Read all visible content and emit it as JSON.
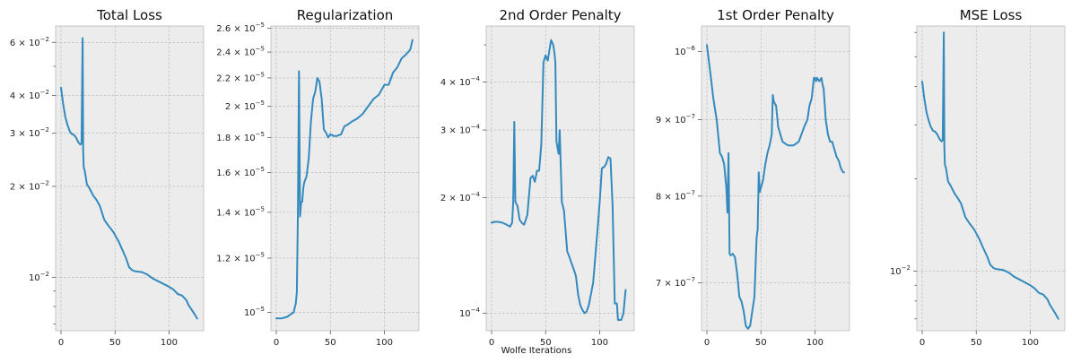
{
  "figure": {
    "xlabel": "Wolfe Iterations"
  },
  "chart_data": [
    {
      "type": "line",
      "title": "Total Loss",
      "xlabel": "",
      "ylabel": "",
      "yscale": "log",
      "xlim": [
        -5,
        132
      ],
      "ylim": [
        0.00665,
        0.068
      ],
      "xticks": [
        0,
        50,
        100
      ],
      "xticklabels": [
        "0",
        "50",
        "100"
      ],
      "yticks": [
        0.01,
        0.02,
        0.03,
        0.04,
        0.06
      ],
      "yticklabels": [
        {
          "m": "10",
          "e": "−2"
        },
        {
          "m": "2 × 10",
          "e": "−2"
        },
        {
          "m": "3 × 10",
          "e": "−2"
        },
        {
          "m": "4 × 10",
          "e": "−2"
        },
        {
          "m": "6 × 10",
          "e": "−2"
        }
      ],
      "yminor": [
        0.007,
        0.008,
        0.009,
        0.05
      ],
      "color": "#348abd",
      "series": [
        {
          "name": "Total Loss",
          "x": [
            0,
            2,
            4,
            6,
            8,
            10,
            12,
            14,
            16,
            18,
            19,
            20,
            20.5,
            21,
            22,
            24,
            26,
            28,
            30,
            33,
            36,
            40,
            44,
            48,
            50,
            53,
            56,
            60,
            63,
            66,
            68,
            70,
            75,
            80,
            85,
            90,
            95,
            100,
            104,
            108,
            112,
            116,
            118,
            120,
            122,
            124,
            126
          ],
          "y": [
            0.0425,
            0.0375,
            0.034,
            0.032,
            0.0305,
            0.0298,
            0.0296,
            0.029,
            0.028,
            0.0275,
            0.0278,
            0.062,
            0.0265,
            0.0232,
            0.0225,
            0.0203,
            0.0198,
            0.0192,
            0.0186,
            0.018,
            0.0172,
            0.0155,
            0.0148,
            0.0142,
            0.0138,
            0.0132,
            0.0125,
            0.0116,
            0.0108,
            0.01055,
            0.01048,
            0.01045,
            0.0104,
            0.0102,
            0.0099,
            0.0097,
            0.0095,
            0.0093,
            0.0091,
            0.0088,
            0.0087,
            0.0084,
            0.0081,
            0.0079,
            0.0077,
            0.0075,
            0.0073
          ]
        }
      ]
    },
    {
      "type": "line",
      "title": "Regularization",
      "xlabel": "",
      "ylabel": "",
      "yscale": "log",
      "xlim": [
        -5,
        132
      ],
      "ylim": [
        9.4e-06,
        2.62e-05
      ],
      "xticks": [
        0,
        50,
        100
      ],
      "xticklabels": [
        "0",
        "50",
        "100"
      ],
      "yticks": [
        1e-05,
        1.2e-05,
        1.4e-05,
        1.6e-05,
        1.8e-05,
        2e-05,
        2.2e-05,
        2.4e-05,
        2.6e-05
      ],
      "yticklabels": [
        {
          "m": "10",
          "e": "−5"
        },
        {
          "m": "1.2 × 10",
          "e": "−5"
        },
        {
          "m": "1.4 × 10",
          "e": "−5"
        },
        {
          "m": "1.6 × 10",
          "e": "−5"
        },
        {
          "m": "1.8 × 10",
          "e": "−5"
        },
        {
          "m": "2 × 10",
          "e": "−5"
        },
        {
          "m": "2.2 × 10",
          "e": "−5"
        },
        {
          "m": "2.4 × 10",
          "e": "−5"
        },
        {
          "m": "2.6 × 10",
          "e": "−5"
        }
      ],
      "yminor": [],
      "color": "#348abd",
      "series": [
        {
          "name": "Regularization",
          "x": [
            0,
            5,
            10,
            14,
            16,
            18,
            19,
            20,
            21,
            22,
            23,
            24,
            25,
            26,
            28,
            30,
            32,
            34,
            36,
            38,
            40,
            42,
            44,
            46,
            48,
            50,
            53,
            56,
            60,
            63,
            66,
            70,
            75,
            80,
            85,
            90,
            95,
            100,
            104,
            108,
            112,
            116,
            120,
            124,
            126
          ],
          "y": [
            9.8e-06,
            9.8e-06,
            9.85e-06,
            9.95e-06,
            1e-05,
            1.03e-05,
            1.07e-05,
            1.4e-05,
            2.25e-05,
            1.38e-05,
            1.45e-05,
            1.45e-05,
            1.52e-05,
            1.55e-05,
            1.58e-05,
            1.68e-05,
            1.9e-05,
            2.05e-05,
            2.1e-05,
            2.2e-05,
            2.17e-05,
            2.05e-05,
            1.85e-05,
            1.83e-05,
            1.8e-05,
            1.82e-05,
            1.81e-05,
            1.81e-05,
            1.82e-05,
            1.87e-05,
            1.88e-05,
            1.9e-05,
            1.92e-05,
            1.95e-05,
            2e-05,
            2.05e-05,
            2.08e-05,
            2.15e-05,
            2.15e-05,
            2.24e-05,
            2.28e-05,
            2.35e-05,
            2.38e-05,
            2.42e-05,
            2.5e-05
          ]
        }
      ]
    },
    {
      "type": "line",
      "title": "2nd Order Penalty",
      "xlabel": "Wolfe Iterations",
      "ylabel": "",
      "yscale": "log",
      "xlim": [
        -5,
        132
      ],
      "ylim": [
        9e-05,
        0.00056
      ],
      "xticks": [
        0,
        50,
        100
      ],
      "xticklabels": [
        "0",
        "50",
        "100"
      ],
      "yticks": [
        0.0001,
        0.0002,
        0.0003,
        0.0004
      ],
      "yticklabels": [
        {
          "m": "10",
          "e": "−4"
        },
        {
          "m": "2 × 10",
          "e": "−4"
        },
        {
          "m": "3 × 10",
          "e": "−4"
        },
        {
          "m": "4 × 10",
          "e": "−4"
        }
      ],
      "yminor": [
        0.0005
      ],
      "color": "#348abd",
      "series": [
        {
          "name": "2nd Order Penalty",
          "x": [
            0,
            3,
            6,
            10,
            14,
            17,
            19,
            20,
            21,
            22,
            24,
            26,
            28,
            30,
            33,
            36,
            38,
            40,
            42,
            44,
            46,
            48,
            50,
            52,
            55,
            57,
            58,
            59,
            60,
            62,
            63,
            65,
            67,
            70,
            72,
            74,
            76,
            78,
            80,
            82,
            84,
            86,
            88,
            90,
            94,
            98,
            100,
            102,
            103,
            104,
            106,
            108,
            110,
            112,
            114,
            116,
            117,
            118,
            120,
            122,
            124
          ],
          "y": [
            0.000172,
            0.000173,
            0.000173,
            0.000172,
            0.00017,
            0.000168,
            0.000172,
            0.000195,
            0.000315,
            0.000195,
            0.00019,
            0.000175,
            0.000172,
            0.00017,
            0.00018,
            0.000225,
            0.000228,
            0.00022,
            0.000235,
            0.000235,
            0.000275,
            0.00045,
            0.00047,
            0.000455,
            0.000515,
            0.0005,
            0.00048,
            0.00045,
            0.00028,
            0.00026,
            0.0003,
            0.000195,
            0.000185,
            0.000145,
            0.00014,
            0.000135,
            0.00013,
            0.000125,
            0.000112,
            0.000105,
            0.000102,
            0.0001,
            0.000101,
            0.000105,
            0.00012,
            0.000165,
            0.000195,
            0.000238,
            0.00024,
            0.00024,
            0.000245,
            0.000255,
            0.000253,
            0.00019,
            0.000106,
            0.000106,
            9.6e-05,
            9.6e-05,
            9.6e-05,
            0.0001,
            0.000115
          ]
        }
      ]
    },
    {
      "type": "line",
      "title": "1st Order Penalty",
      "xlabel": "",
      "ylabel": "",
      "yscale": "log",
      "xlim": [
        -5,
        132
      ],
      "ylim": [
        6.5e-07,
        1.04e-06
      ],
      "xticks": [
        0,
        50,
        100
      ],
      "xticklabels": [
        "0",
        "50",
        "100"
      ],
      "yticks": [
        7e-07,
        8e-07,
        9e-07,
        1e-06
      ],
      "yticklabels": [
        {
          "m": "7 × 10",
          "e": "−7"
        },
        {
          "m": "8 × 10",
          "e": "−7"
        },
        {
          "m": "9 × 10",
          "e": "−7"
        },
        {
          "m": "10",
          "e": "−6"
        }
      ],
      "yminor": [],
      "color": "#348abd",
      "series": [
        {
          "name": "1st Order Penalty",
          "x": [
            0,
            3,
            6,
            9,
            11,
            12,
            14,
            16,
            18,
            19,
            20,
            21,
            22,
            24,
            26,
            28,
            30,
            32,
            34,
            36,
            38,
            40,
            42,
            44,
            46,
            47,
            48,
            49,
            50,
            52,
            54,
            56,
            58,
            60,
            61,
            62,
            64,
            66,
            70,
            75,
            80,
            85,
            90,
            93,
            95,
            97,
            99,
            100,
            101,
            102,
            104,
            106,
            107,
            108,
            110,
            112,
            114,
            116,
            118,
            120,
            122,
            124,
            126,
            127
          ],
          "y": [
            1.01e-06,
            9.7e-07,
            9.3e-07,
            9e-07,
            8.7e-07,
            8.55e-07,
            8.5e-07,
            8.4e-07,
            8.1e-07,
            7.8e-07,
            8.55e-07,
            7.32e-07,
            7.3e-07,
            7.32e-07,
            7.28e-07,
            7.1e-07,
            6.85e-07,
            6.8e-07,
            6.7e-07,
            6.55e-07,
            6.52e-07,
            6.55e-07,
            6.7e-07,
            6.85e-07,
            7.5e-07,
            7.6e-07,
            8.3e-07,
            8.05e-07,
            8.1e-07,
            8.2e-07,
            8.4e-07,
            8.55e-07,
            8.65e-07,
            8.8e-07,
            9.35e-07,
            9.25e-07,
            9.2e-07,
            8.9e-07,
            8.7e-07,
            8.65e-07,
            8.65e-07,
            8.7e-07,
            8.9e-07,
            9e-07,
            9.2e-07,
            9.3e-07,
            9.6e-07,
            9.6e-07,
            9.55e-07,
            9.6e-07,
            9.55e-07,
            9.6e-07,
            9.5e-07,
            9.45e-07,
            9e-07,
            8.8e-07,
            8.7e-07,
            8.7e-07,
            8.6e-07,
            8.5e-07,
            8.45e-07,
            8.35e-07,
            8.3e-07,
            8.3e-07
          ]
        }
      ]
    },
    {
      "type": "line",
      "title": "MSE Loss",
      "xlabel": "",
      "ylabel": "",
      "yscale": "log",
      "xlim": [
        -5,
        132
      ],
      "ylim": [
        0.0064,
        0.063
      ],
      "xticks": [
        0,
        50,
        100
      ],
      "xticklabels": [
        "0",
        "50",
        "100"
      ],
      "yticks": [
        0.01
      ],
      "yticklabels": [
        {
          "m": "10",
          "e": "−2"
        }
      ],
      "yminor": [
        0.007,
        0.008,
        0.009,
        0.02,
        0.03,
        0.04,
        0.05,
        0.06
      ],
      "color": "#348abd",
      "series": [
        {
          "name": "MSE Loss",
          "x": [
            0,
            2,
            4,
            6,
            8,
            10,
            12,
            14,
            16,
            18,
            19,
            20,
            20.5,
            21,
            22,
            24,
            26,
            28,
            30,
            33,
            36,
            40,
            44,
            48,
            50,
            53,
            56,
            60,
            63,
            66,
            68,
            70,
            75,
            80,
            85,
            90,
            95,
            100,
            104,
            108,
            112,
            116,
            118,
            120,
            122,
            124,
            126
          ],
          "y": [
            0.0415,
            0.0365,
            0.033,
            0.031,
            0.0295,
            0.0287,
            0.0285,
            0.0279,
            0.027,
            0.0265,
            0.0268,
            0.06,
            0.0255,
            0.0223,
            0.0217,
            0.0196,
            0.0191,
            0.0185,
            0.0179,
            0.0173,
            0.0166,
            0.015,
            0.0143,
            0.0137,
            0.0133,
            0.0127,
            0.012,
            0.0112,
            0.0105,
            0.01025,
            0.01018,
            0.01015,
            0.0101,
            0.0099,
            0.0096,
            0.0094,
            0.0092,
            0.009,
            0.0088,
            0.0085,
            0.0084,
            0.0081,
            0.0078,
            0.0076,
            0.0074,
            0.0072,
            0.007
          ]
        }
      ]
    }
  ]
}
